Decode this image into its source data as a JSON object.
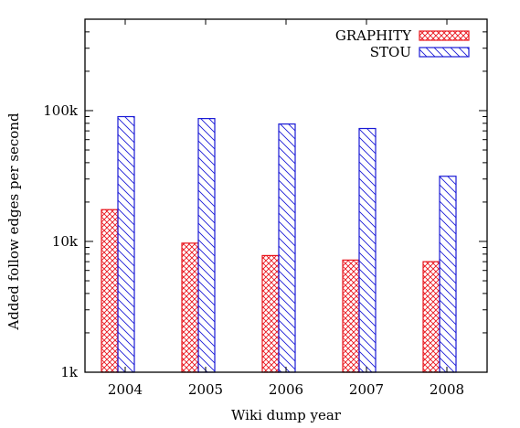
{
  "chart_data": {
    "type": "bar",
    "title": "",
    "xlabel": "Wiki dump year",
    "ylabel": "Added follow edges per second",
    "yscale": "log",
    "ylim": [
      1000,
      500000
    ],
    "yticks": [
      {
        "value": 1000,
        "label": "1k"
      },
      {
        "value": 10000,
        "label": "10k"
      },
      {
        "value": 100000,
        "label": "100k"
      }
    ],
    "categories": [
      "2004",
      "2005",
      "2006",
      "2007",
      "2008"
    ],
    "series": [
      {
        "name": "GRAPHITY",
        "color": "#e8141c",
        "pattern": "crosshatch",
        "values": [
          17500,
          9700,
          7800,
          7200,
          7000
        ]
      },
      {
        "name": "STOU",
        "color": "#1a1ad6",
        "pattern": "diagonal",
        "values": [
          90000,
          87000,
          79000,
          73000,
          31500
        ]
      }
    ],
    "legend_position": "top-right",
    "grid": false
  }
}
